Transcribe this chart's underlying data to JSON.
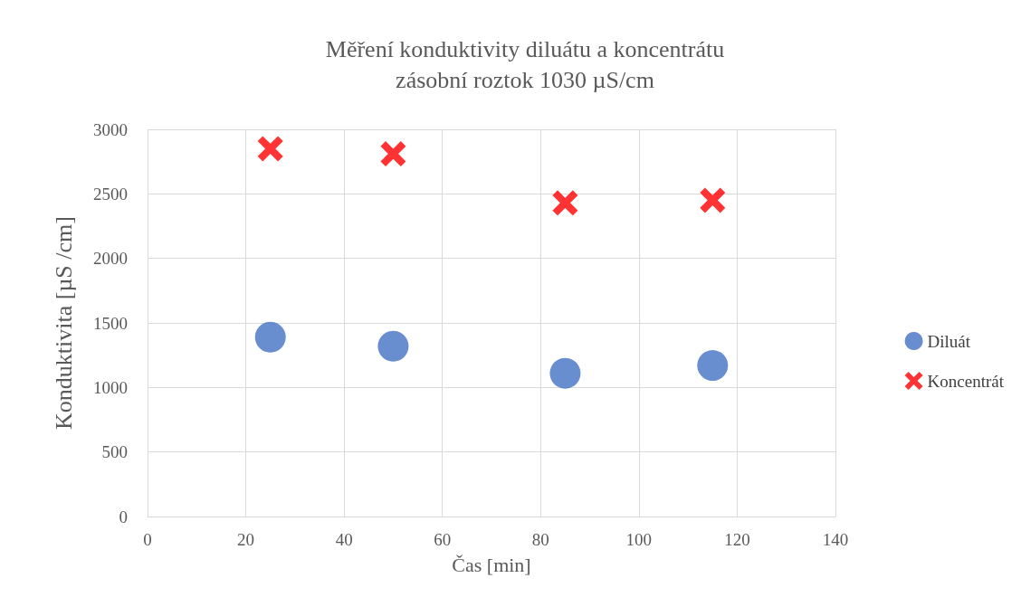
{
  "chart_data": {
    "type": "scatter",
    "title": "Měření konduktivity diluátu a koncentrátu",
    "subtitle": "zásobní roztok 1030 µS/cm",
    "xlabel": "Čas [min]",
    "ylabel": "Konduktivita [µS /cm]",
    "series": [
      {
        "name": "Diluát",
        "color": "#4472c4",
        "marker": "circle",
        "x": [
          25,
          50,
          85,
          115
        ],
        "values": [
          1390,
          1320,
          1110,
          1170
        ]
      },
      {
        "name": "Koncentrát",
        "color": "#ff0000",
        "marker": "cross",
        "x": [
          25,
          50,
          85,
          115
        ],
        "values": [
          2850,
          2810,
          2430,
          2450
        ]
      }
    ],
    "xlim": [
      0,
      140
    ],
    "xticks": [
      0,
      20,
      40,
      60,
      80,
      100,
      120,
      140
    ],
    "ylim": [
      0,
      3000
    ],
    "yticks": [
      0,
      500,
      1000,
      1500,
      2000,
      2500,
      3000
    ],
    "grid": true,
    "legend": "right"
  }
}
